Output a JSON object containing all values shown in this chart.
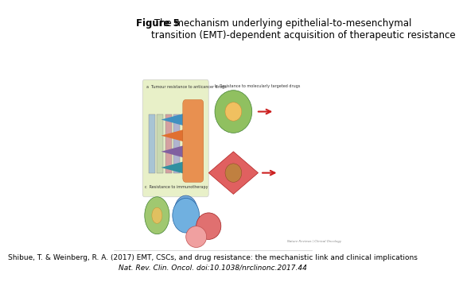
{
  "title_bold": "Figure 5",
  "title_regular": " The mechanism underlying epithelial-to-mesenchymal\ntransition (EMT)-dependent acquisition of therapeutic resistance",
  "citation_line1": "Shibue, T. & Weinberg, R. A. (2017) EMT, CSCs, and drug resistance: the mechanistic link and clinical implications",
  "citation_line2": "Nat. Rev. Clin. Oncol. doi:10.1038/nrclinonc.2017.44",
  "background_color": "#ffffff",
  "title_fontsize": 8.5,
  "citation_fontsize": 6.5
}
